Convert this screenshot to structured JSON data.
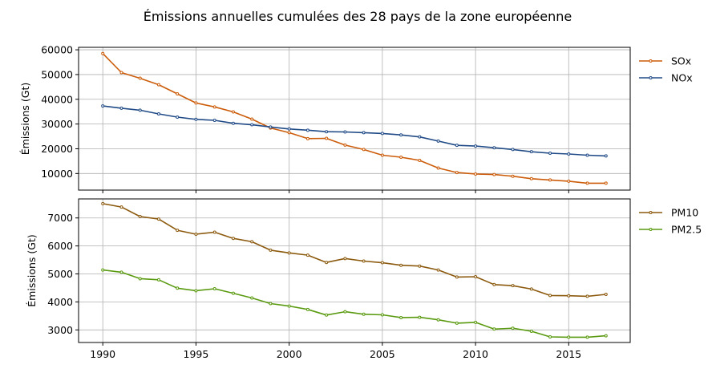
{
  "title": "Émissions annuelles cumulées des 28 pays de la zone européenne",
  "chart_data": [
    {
      "type": "line",
      "title": "",
      "xlabel": "",
      "ylabel": "Émissions (Gt)",
      "xlim": [
        1988.7,
        2018.3
      ],
      "ylim": [
        3300,
        61000
      ],
      "yticks": [
        10000,
        20000,
        30000,
        40000,
        50000,
        60000
      ],
      "ytick_labels": [
        "10000",
        "20000",
        "30000",
        "40000",
        "50000",
        "60000"
      ],
      "grid": true,
      "legend": "outside-right-top",
      "x": [
        1990,
        1991,
        1992,
        1993,
        1994,
        1995,
        1996,
        1997,
        1998,
        1999,
        2000,
        2001,
        2002,
        2003,
        2004,
        2005,
        2006,
        2007,
        2008,
        2009,
        2010,
        2011,
        2012,
        2013,
        2014,
        2015,
        2016,
        2017
      ],
      "series": [
        {
          "name": "SOx",
          "color": "#cc5c0a",
          "values": [
            58500,
            50800,
            48500,
            45900,
            42200,
            38500,
            36900,
            34900,
            32000,
            28400,
            26500,
            24100,
            24200,
            21500,
            19700,
            17400,
            16600,
            15300,
            12200,
            10400,
            9800,
            9600,
            8900,
            7900,
            7400,
            6900,
            6100,
            6100
          ]
        },
        {
          "name": "NOx",
          "color": "#214b87",
          "values": [
            37300,
            36400,
            35600,
            34100,
            32800,
            31900,
            31500,
            30300,
            29700,
            28800,
            28000,
            27500,
            26900,
            26800,
            26500,
            26200,
            25600,
            24800,
            23100,
            21400,
            21100,
            20400,
            19700,
            18800,
            18200,
            17900,
            17400,
            17100
          ]
        }
      ]
    },
    {
      "type": "line",
      "title": "",
      "xlabel": "",
      "ylabel": "Émissions (Gt)",
      "xlim": [
        1988.7,
        2018.3
      ],
      "ylim": [
        2550,
        7680
      ],
      "yticks": [
        3000,
        4000,
        5000,
        6000,
        7000
      ],
      "ytick_labels": [
        "3000",
        "4000",
        "5000",
        "6000",
        "7000"
      ],
      "xticks": [
        1990,
        1995,
        2000,
        2005,
        2010,
        2015
      ],
      "xtick_labels": [
        "1990",
        "1995",
        "2000",
        "2005",
        "2010",
        "2015"
      ],
      "grid": true,
      "legend": "outside-right-top",
      "x": [
        1990,
        1991,
        1992,
        1993,
        1994,
        1995,
        1996,
        1997,
        1998,
        1999,
        2000,
        2001,
        2002,
        2003,
        2004,
        2005,
        2006,
        2007,
        2008,
        2009,
        2010,
        2011,
        2012,
        2013,
        2014,
        2015,
        2016,
        2017
      ],
      "series": [
        {
          "name": "PM10",
          "color": "#8c5a0e",
          "values": [
            7510,
            7390,
            7050,
            6960,
            6560,
            6420,
            6490,
            6270,
            6150,
            5850,
            5750,
            5670,
            5410,
            5550,
            5460,
            5400,
            5310,
            5280,
            5140,
            4890,
            4900,
            4620,
            4580,
            4460,
            4230,
            4220,
            4200,
            4270
          ]
        },
        {
          "name": "PM2.5",
          "color": "#5a9a10",
          "values": [
            5140,
            5060,
            4830,
            4790,
            4490,
            4400,
            4470,
            4310,
            4140,
            3940,
            3850,
            3730,
            3530,
            3650,
            3560,
            3540,
            3440,
            3450,
            3360,
            3240,
            3270,
            3030,
            3060,
            2950,
            2750,
            2740,
            2740,
            2790
          ]
        }
      ]
    }
  ]
}
